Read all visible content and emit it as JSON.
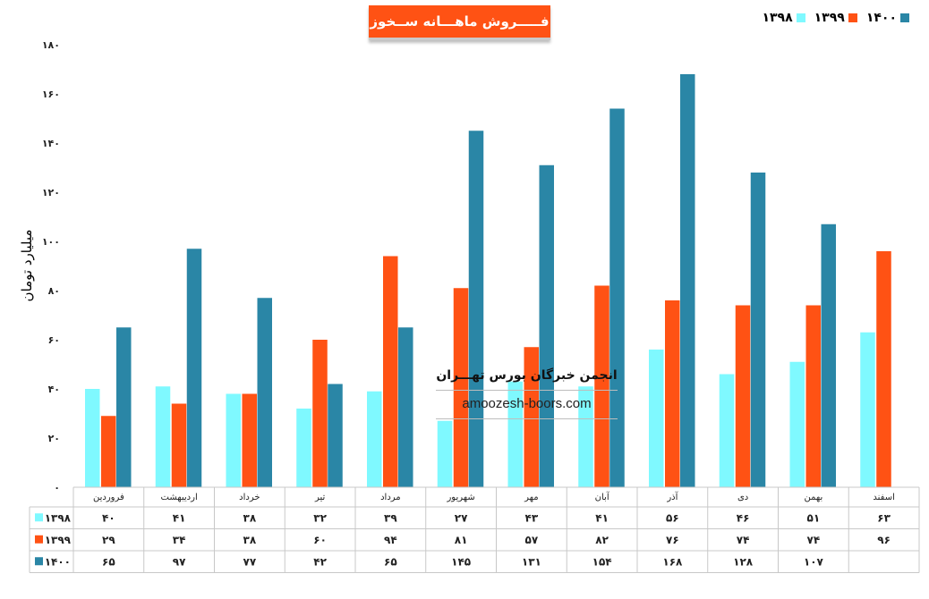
{
  "chart_data": {
    "type": "bar",
    "title": "فـــــروش ماهـــانه ســخوز",
    "ylabel": "میلیارد تومان",
    "ylim": [
      0,
      180
    ],
    "y_ticks": [
      "۰",
      "۲۰",
      "۴۰",
      "۶۰",
      "۸۰",
      "۱۰۰",
      "۱۲۰",
      "۱۴۰",
      "۱۶۰",
      "۱۸۰"
    ],
    "grid": false,
    "legend_position": "top-right",
    "categories": [
      "فروردین",
      "اردیبهشت",
      "خرداد",
      "تیر",
      "مرداد",
      "شهریور",
      "مهر",
      "آبان",
      "آذر",
      "دی",
      "بهمن",
      "اسفند"
    ],
    "series": [
      {
        "name": "۱۳۹۸",
        "color": "#7ff9ff",
        "values": [
          40,
          41,
          38,
          32,
          39,
          27,
          43,
          41,
          56,
          46,
          51,
          63
        ],
        "labels": [
          "۴۰",
          "۴۱",
          "۳۸",
          "۳۲",
          "۳۹",
          "۲۷",
          "۴۳",
          "۴۱",
          "۵۶",
          "۴۶",
          "۵۱",
          "۶۳"
        ]
      },
      {
        "name": "۱۳۹۹",
        "color": "#ff5214",
        "values": [
          29,
          34,
          38,
          60,
          94,
          81,
          57,
          82,
          76,
          74,
          74,
          96
        ],
        "labels": [
          "۲۹",
          "۳۴",
          "۳۸",
          "۶۰",
          "۹۴",
          "۸۱",
          "۵۷",
          "۸۲",
          "۷۶",
          "۷۴",
          "۷۴",
          "۹۶"
        ]
      },
      {
        "name": "۱۴۰۰",
        "color": "#2a86a6",
        "values": [
          65,
          97,
          77,
          42,
          65,
          145,
          131,
          154,
          168,
          128,
          107,
          null
        ],
        "labels": [
          "۶۵",
          "۹۷",
          "۷۷",
          "۴۲",
          "۶۵",
          "۱۴۵",
          "۱۳۱",
          "۱۵۴",
          "۱۶۸",
          "۱۲۸",
          "۱۰۷",
          ""
        ]
      }
    ]
  },
  "watermark": {
    "title": "انجمن خبرگان بورس تهـــران",
    "site": "amoozesh-boors.com"
  }
}
